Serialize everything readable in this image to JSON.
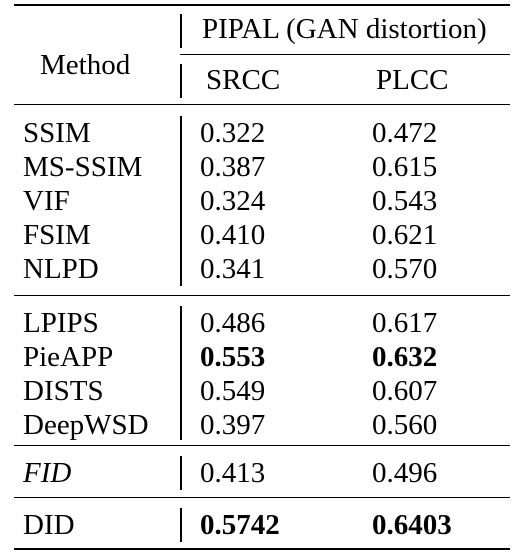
{
  "table": {
    "group_header": "PIPAL (GAN distortion)",
    "method_header": "Method",
    "srcc_header": "SRCC",
    "plcc_header": "PLCC",
    "groups": [
      {
        "rows": [
          {
            "method": "SSIM",
            "srcc": "0.322",
            "plcc": "0.472"
          },
          {
            "method": "MS-SSIM",
            "srcc": "0.387",
            "plcc": "0.615"
          },
          {
            "method": "VIF",
            "srcc": "0.324",
            "plcc": "0.543"
          },
          {
            "method": "FSIM",
            "srcc": "0.410",
            "plcc": "0.621"
          },
          {
            "method": "NLPD",
            "srcc": "0.341",
            "plcc": "0.570"
          }
        ]
      },
      {
        "rows": [
          {
            "method": "LPIPS",
            "srcc": "0.486",
            "plcc": "0.617"
          },
          {
            "method": "PieAPP",
            "srcc": "0.553",
            "plcc": "0.632",
            "bold_values": true
          },
          {
            "method": "DISTS",
            "srcc": "0.549",
            "plcc": "0.607"
          },
          {
            "method": "DeepWSD",
            "srcc": "0.397",
            "plcc": "0.560"
          }
        ]
      },
      {
        "rows": [
          {
            "method": "FID",
            "srcc": "0.413",
            "plcc": "0.496",
            "italic_method": true
          }
        ]
      },
      {
        "rows": [
          {
            "method": "DID",
            "srcc": "0.5742",
            "plcc": "0.6403",
            "bold_values": true
          }
        ]
      }
    ]
  }
}
